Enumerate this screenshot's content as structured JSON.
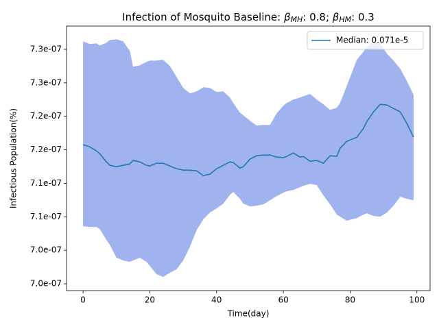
{
  "chart_data": {
    "type": "line",
    "title": [
      {
        "text": "Infection of Mosquito Baseline: "
      },
      {
        "text": "β",
        "italic": true
      },
      {
        "text": "MH",
        "italic": true,
        "sub": true
      },
      {
        "text": ": 0.8; "
      },
      {
        "text": "β",
        "italic": true
      },
      {
        "text": "HM",
        "italic": true,
        "sub": true
      },
      {
        "text": ": 0.3"
      }
    ],
    "x_label": "Time(day)",
    "y_label": "Infectious Population(%)",
    "x": [
      0,
      2,
      4,
      5,
      7,
      8,
      10,
      12,
      14,
      15,
      17,
      19,
      20,
      22,
      24,
      26,
      28,
      30,
      32,
      34,
      36,
      38,
      40,
      42,
      44,
      45,
      47,
      48,
      50,
      52,
      54,
      56,
      58,
      60,
      61,
      63,
      65,
      66,
      68,
      70,
      72,
      74,
      76,
      77,
      79,
      82,
      84,
      85,
      87,
      89,
      91,
      93,
      95,
      97,
      99
    ],
    "series": [
      {
        "name": "Median: 0.071e-5",
        "color": "#1f77b4",
        "values": [
          7.1676e-07,
          7.1645e-07,
          7.1584e-07,
          7.1543e-07,
          7.142e-07,
          7.1369e-07,
          7.1348e-07,
          7.1369e-07,
          7.1389e-07,
          7.1441e-07,
          7.142e-07,
          7.1369e-07,
          7.1359e-07,
          7.14e-07,
          7.14e-07,
          7.1359e-07,
          7.1318e-07,
          7.1297e-07,
          7.1297e-07,
          7.1287e-07,
          7.1216e-07,
          7.1236e-07,
          7.1318e-07,
          7.1369e-07,
          7.142e-07,
          7.141e-07,
          7.1328e-07,
          7.1348e-07,
          7.1461e-07,
          7.1512e-07,
          7.1522e-07,
          7.1522e-07,
          7.1492e-07,
          7.1481e-07,
          7.1502e-07,
          7.1553e-07,
          7.1492e-07,
          7.1502e-07,
          7.143e-07,
          7.1441e-07,
          7.14e-07,
          7.1512e-07,
          7.1502e-07,
          7.1625e-07,
          7.1727e-07,
          7.1788e-07,
          7.1921e-07,
          7.2023e-07,
          7.2166e-07,
          7.2279e-07,
          7.2269e-07,
          7.2218e-07,
          7.2166e-07,
          7.1993e-07,
          7.1788e-07
        ]
      }
    ],
    "band": {
      "color": "#a1b3ee",
      "upper": [
        7.322e-07,
        7.3179e-07,
        7.3189e-07,
        7.3158e-07,
        7.3199e-07,
        7.324e-07,
        7.325e-07,
        7.322e-07,
        7.3077e-07,
        7.2841e-07,
        7.2862e-07,
        7.2913e-07,
        7.2933e-07,
        7.2933e-07,
        7.2944e-07,
        7.2852e-07,
        7.2688e-07,
        7.2524e-07,
        7.2443e-07,
        7.2473e-07,
        7.2535e-07,
        7.2524e-07,
        7.2463e-07,
        7.2473e-07,
        7.2381e-07,
        7.2299e-07,
        7.2156e-07,
        7.2115e-07,
        7.2034e-07,
        7.1962e-07,
        7.1972e-07,
        7.1972e-07,
        7.2146e-07,
        7.2259e-07,
        7.2299e-07,
        7.2351e-07,
        7.2381e-07,
        7.2402e-07,
        7.2432e-07,
        7.2351e-07,
        7.2279e-07,
        7.2197e-07,
        7.2228e-07,
        7.2299e-07,
        7.2555e-07,
        7.2944e-07,
        7.3066e-07,
        7.3138e-07,
        7.322e-07,
        7.3189e-07,
        7.3036e-07,
        7.2933e-07,
        7.2811e-07,
        7.2627e-07,
        7.2422e-07
      ],
      "lower": [
        7.0459e-07,
        7.0449e-07,
        7.0449e-07,
        7.0418e-07,
        7.0254e-07,
        7.0183e-07,
        6.9989e-07,
        6.9948e-07,
        6.9927e-07,
        6.9948e-07,
        6.9989e-07,
        6.9927e-07,
        6.9866e-07,
        6.9743e-07,
        6.9702e-07,
        6.9764e-07,
        6.9815e-07,
        6.9948e-07,
        7.0152e-07,
        7.0398e-07,
        7.0561e-07,
        7.0663e-07,
        7.0725e-07,
        7.0796e-07,
        7.0929e-07,
        7.097e-07,
        7.0868e-07,
        7.0796e-07,
        7.0755e-07,
        7.0766e-07,
        7.0786e-07,
        7.0847e-07,
        7.0909e-07,
        7.096e-07,
        7.098e-07,
        7.1001e-07,
        7.1042e-07,
        7.1062e-07,
        7.1093e-07,
        7.1072e-07,
        7.0919e-07,
        7.0786e-07,
        7.0633e-07,
        7.0602e-07,
        7.0541e-07,
        7.0582e-07,
        7.0633e-07,
        7.0653e-07,
        7.0612e-07,
        7.0602e-07,
        7.0663e-07,
        7.0766e-07,
        7.0899e-07,
        7.0868e-07,
        7.0847e-07
      ]
    },
    "xlim": [
      -4.95,
      103.95
    ],
    "xticks": [
      0,
      20,
      40,
      60,
      80,
      100
    ],
    "ylim": [
      6.9498e-07,
      7.3448e-07
    ],
    "yticks": [
      {
        "value": 6.96e-07,
        "label": "7.0e-07"
      },
      {
        "value": 7.01e-07,
        "label": "7.0e-07"
      },
      {
        "value": 7.06e-07,
        "label": "7.1e-07"
      },
      {
        "value": 7.11e-07,
        "label": "7.1e-07"
      },
      {
        "value": 7.16e-07,
        "label": "7.2e-07"
      },
      {
        "value": 7.21e-07,
        "label": "7.2e-07"
      },
      {
        "value": 7.26e-07,
        "label": "7.3e-07"
      },
      {
        "value": 7.31e-07,
        "label": "7.3e-07"
      }
    ],
    "legend": "upper right",
    "grid": false
  }
}
